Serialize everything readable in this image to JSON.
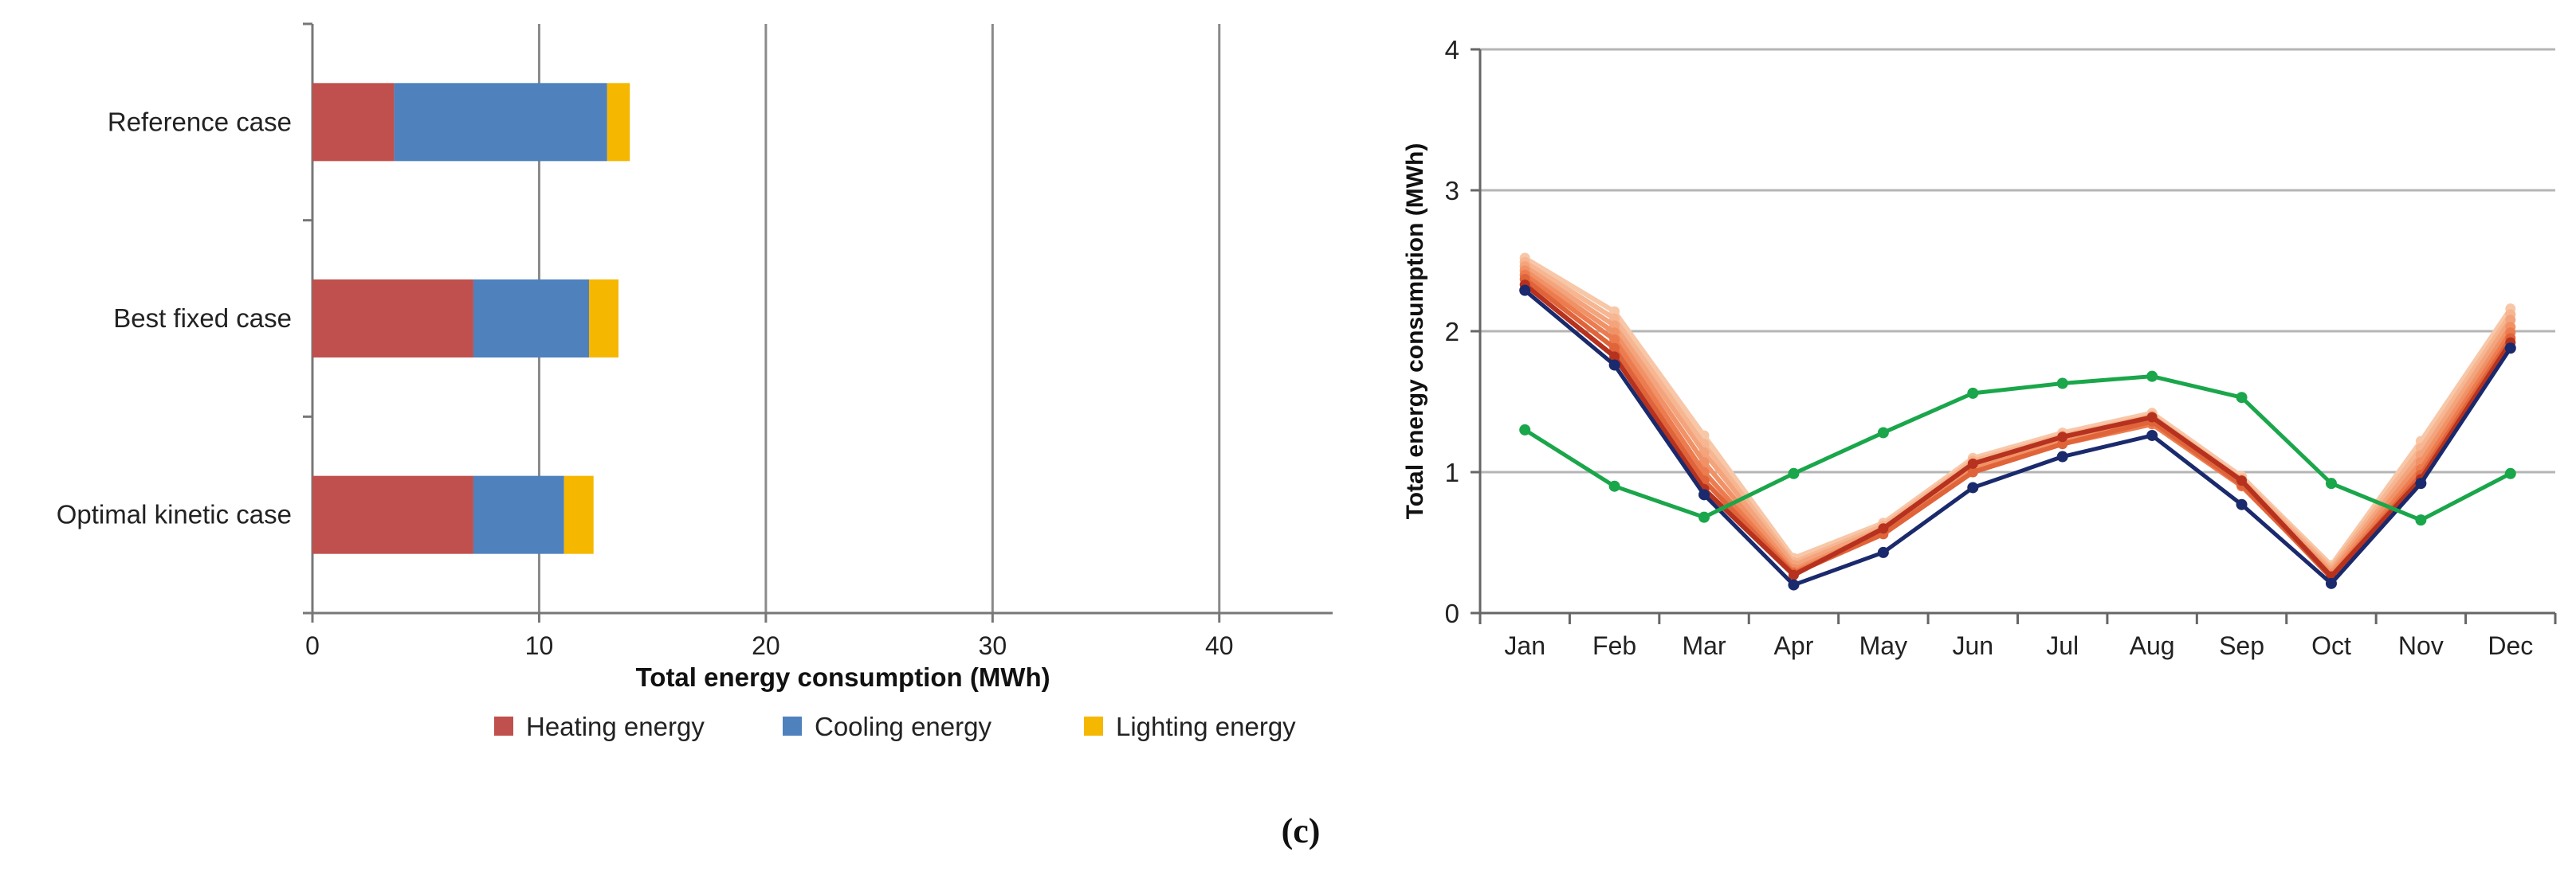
{
  "panel_label": "(c)",
  "chart_data": [
    {
      "type": "bar",
      "orientation": "horizontal",
      "stacked": true,
      "categories": [
        "Reference case",
        "Best fixed case",
        "Optimal kinetic case"
      ],
      "series": [
        {
          "name": "Heating energy",
          "color": "#c0504d",
          "values": [
            3.6,
            7.1,
            7.1
          ]
        },
        {
          "name": "Cooling energy",
          "color": "#4f81bd",
          "values": [
            9.4,
            5.1,
            4.0
          ]
        },
        {
          "name": "Lighting energy",
          "color": "#f5b700",
          "values": [
            1.0,
            1.3,
            1.3
          ]
        }
      ],
      "xlabel": "Total energy consumption (MWh)",
      "ylabel": "",
      "xlim": [
        0,
        45
      ],
      "xticks": [
        "0",
        "10",
        "20",
        "30",
        "40"
      ],
      "grid": "vertical",
      "legend": "bottom"
    },
    {
      "type": "line",
      "x": [
        "Jan",
        "Feb",
        "Mar",
        "Apr",
        "May",
        "Jun",
        "Jul",
        "Aug",
        "Sep",
        "Oct",
        "Nov",
        "Dec"
      ],
      "ylabel": "Total energy consumption (MWh)",
      "xlabel": "",
      "ylim": [
        0,
        4
      ],
      "yticks": [
        "0",
        "1",
        "2",
        "3",
        "4"
      ],
      "grid": "horizontal",
      "legend": "none",
      "series": [
        {
          "color": "#f8c7a8",
          "values": [
            2.52,
            2.14,
            1.26,
            0.39,
            0.64,
            1.1,
            1.28,
            1.42,
            0.97,
            0.34,
            1.22,
            2.16
          ]
        },
        {
          "color": "#f6b692",
          "values": [
            2.49,
            2.09,
            1.2,
            0.36,
            0.62,
            1.08,
            1.26,
            1.4,
            0.95,
            0.32,
            1.17,
            2.12
          ]
        },
        {
          "color": "#f4a47c",
          "values": [
            2.46,
            2.04,
            1.14,
            0.34,
            0.6,
            1.05,
            1.24,
            1.38,
            0.93,
            0.3,
            1.12,
            2.08
          ]
        },
        {
          "color": "#f19166",
          "values": [
            2.43,
            1.99,
            1.07,
            0.31,
            0.58,
            1.02,
            1.22,
            1.36,
            0.91,
            0.28,
            1.07,
            2.03
          ]
        },
        {
          "color": "#ec7c50",
          "values": [
            2.4,
            1.94,
            1.0,
            0.29,
            0.57,
            1.0,
            1.2,
            1.34,
            0.9,
            0.26,
            1.02,
            1.99
          ]
        },
        {
          "color": "#e0643a",
          "values": [
            2.37,
            1.88,
            0.94,
            0.28,
            0.56,
            1.0,
            1.2,
            1.36,
            0.91,
            0.25,
            0.98,
            1.95
          ]
        },
        {
          "color": "#b6321f",
          "values": [
            2.33,
            1.82,
            0.88,
            0.27,
            0.6,
            1.06,
            1.25,
            1.39,
            0.94,
            0.26,
            0.95,
            1.92
          ]
        },
        {
          "color": "#1a2a6c",
          "values": [
            2.29,
            1.76,
            0.84,
            0.2,
            0.43,
            0.89,
            1.11,
            1.26,
            0.77,
            0.21,
            0.92,
            1.88
          ]
        },
        {
          "color": "#1aa64a",
          "values": [
            1.3,
            0.9,
            0.68,
            0.99,
            1.28,
            1.56,
            1.63,
            1.68,
            1.53,
            0.92,
            0.66,
            0.99
          ]
        }
      ]
    }
  ]
}
